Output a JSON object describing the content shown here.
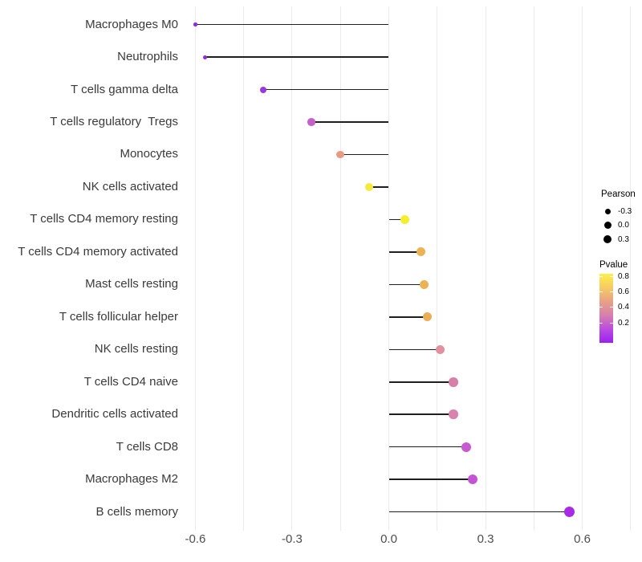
{
  "figure": {
    "background": "#ffffff",
    "grid_color": "#ebebeb",
    "stem_color": "#1f1f1f",
    "axis_text_color": "#4d4d4d"
  },
  "chart_data": {
    "type": "lollipop",
    "orientation": "horizontal",
    "title": "",
    "xlabel": "",
    "ylabel": "",
    "xlim": [
      -0.63,
      0.77
    ],
    "grid": true,
    "x_ticks": [
      -0.6,
      -0.3,
      0.0,
      0.3,
      0.6
    ],
    "x_tick_labels": [
      "-0.6",
      "-0.3",
      "0.0",
      "0.3",
      "0.6"
    ],
    "grid_lines_x": [
      -0.6,
      -0.45,
      -0.3,
      -0.15,
      0.0,
      0.15,
      0.3,
      0.45,
      0.6,
      0.75
    ],
    "baseline_x": 0.0,
    "categories": [
      "Macrophages M0",
      "Neutrophils",
      "T cells gamma delta",
      "T cells regulatory  Tregs",
      "Monocytes",
      "NK cells activated",
      "T cells CD4 memory resting",
      "T cells CD4 memory activated",
      "Mast cells resting",
      "T cells follicular helper",
      "NK cells resting",
      "T cells CD4 naive",
      "Dendritic cells activated",
      "T cells CD8",
      "Macrophages M2",
      "B cells memory"
    ],
    "points": [
      {
        "label": "Macrophages M0",
        "pearson": -0.6,
        "color": "#8e2ce2",
        "size": 4.5
      },
      {
        "label": "Neutrophils",
        "pearson": -0.57,
        "color": "#8e2ce2",
        "size": 5
      },
      {
        "label": "T cells gamma delta",
        "pearson": -0.39,
        "color": "#9c35e2",
        "size": 8
      },
      {
        "label": "T cells regulatory  Tregs",
        "pearson": -0.24,
        "color": "#c75fc8",
        "size": 9.5
      },
      {
        "label": "Monocytes",
        "pearson": -0.15,
        "color": "#e89b84",
        "size": 9.5
      },
      {
        "label": "NK cells activated",
        "pearson": -0.06,
        "color": "#f6e93c",
        "size": 10
      },
      {
        "label": "T cells CD4 memory resting",
        "pearson": 0.05,
        "color": "#f3ef2d",
        "size": 11.5
      },
      {
        "label": "T cells CD4 memory activated",
        "pearson": 0.1,
        "color": "#ecb254",
        "size": 11
      },
      {
        "label": "Mast cells resting",
        "pearson": 0.11,
        "color": "#ecb254",
        "size": 11
      },
      {
        "label": "T cells follicular helper",
        "pearson": 0.12,
        "color": "#eaaf55",
        "size": 11
      },
      {
        "label": "NK cells resting",
        "pearson": 0.16,
        "color": "#e2909d",
        "size": 11
      },
      {
        "label": "T cells CD4 naive",
        "pearson": 0.2,
        "color": "#d77fa9",
        "size": 11.5
      },
      {
        "label": "Dendritic cells activated",
        "pearson": 0.2,
        "color": "#d982ae",
        "size": 11.5
      },
      {
        "label": "T cells CD8",
        "pearson": 0.24,
        "color": "#c65ad0",
        "size": 12
      },
      {
        "label": "Macrophages M2",
        "pearson": 0.26,
        "color": "#c455d2",
        "size": 12.5
      },
      {
        "label": "B cells memory",
        "pearson": 0.56,
        "color": "#a82ae4",
        "size": 13.5
      }
    ],
    "legend": {
      "size_legend": {
        "title": "Pearson",
        "entries": [
          {
            "label": "-0.3",
            "d": 7
          },
          {
            "label": "0.0",
            "d": 9
          },
          {
            "label": "0.3",
            "d": 10.5
          }
        ]
      },
      "color_legend": {
        "title": "Pvalue",
        "gradient": [
          "#fbef4a",
          "#f6cb63",
          "#e7a185",
          "#d77fae",
          "#bb4ce0",
          "#9b20f0"
        ],
        "ticks": [
          {
            "label": "0.8",
            "pos": 0.035
          },
          {
            "label": "0.6",
            "pos": 0.267
          },
          {
            "label": "0.4",
            "pos": 0.488
          },
          {
            "label": "0.2",
            "pos": 0.72
          }
        ]
      }
    }
  }
}
